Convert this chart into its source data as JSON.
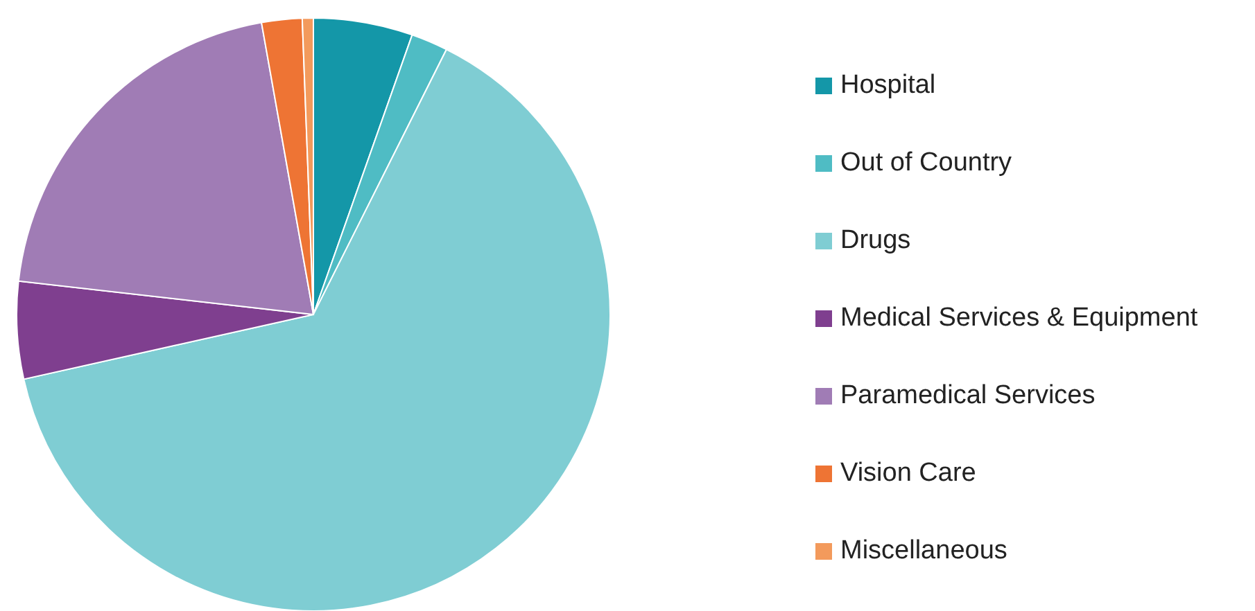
{
  "chart_data": {
    "type": "pie",
    "categories": [
      "Hospital",
      "Out of Country",
      "Drugs",
      "Medical Services & Equipment",
      "Paramedical Services",
      "Vision Care",
      "Miscellaneous"
    ],
    "values": [
      5.4,
      2.0,
      64.1,
      5.3,
      20.4,
      2.2,
      0.6
    ],
    "colors": [
      "#1497a8",
      "#4fbcc4",
      "#7fcdd3",
      "#7f3f8f",
      "#a07cb5",
      "#ee7434",
      "#f39a5c"
    ],
    "legend": "right"
  }
}
